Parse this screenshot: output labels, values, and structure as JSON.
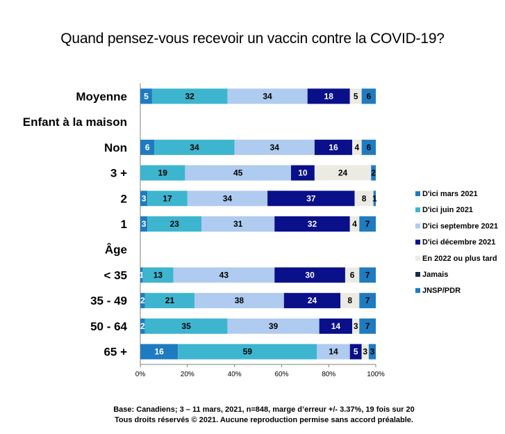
{
  "chart_data": {
    "type": "bar",
    "orientation": "horizontal",
    "stacked": true,
    "title": "Quand pensez-vous recevoir un vaccin contre la COVID-19?",
    "categories": [
      "Moyenne",
      "Enfant à la maison",
      "Non",
      "3 +",
      "2",
      "1",
      "Âge",
      "< 35",
      "35 - 49",
      "50 - 64",
      "65 +"
    ],
    "headers": [
      "Enfant à la maison",
      "Âge"
    ],
    "series": [
      {
        "name": "D'ici mars 2021",
        "color": "#1F7BC0",
        "text_color": "#ffffff",
        "values": [
          5,
          null,
          6,
          0,
          3,
          3,
          null,
          1,
          2,
          2,
          16
        ]
      },
      {
        "name": "D'ici juin 2021",
        "color": "#3DB5CF",
        "text_color": "#000000",
        "values": [
          32,
          null,
          34,
          19,
          17,
          23,
          null,
          13,
          21,
          35,
          59
        ]
      },
      {
        "name": "D'ici septembre 2021",
        "color": "#AFCBEF",
        "text_color": "#000000",
        "values": [
          34,
          null,
          34,
          45,
          34,
          31,
          null,
          43,
          38,
          39,
          14
        ]
      },
      {
        "name": "D'ici décembre 2021",
        "color": "#0A0F8A",
        "text_color": "#ffffff",
        "values": [
          18,
          null,
          16,
          10,
          37,
          32,
          null,
          30,
          24,
          14,
          5
        ]
      },
      {
        "name": "En 2022 ou plus tard",
        "color": "#ECEBE3",
        "text_color": "#000000",
        "values": [
          5,
          null,
          4,
          24,
          8,
          4,
          null,
          6,
          8,
          3,
          3
        ]
      },
      {
        "name": "Jamais",
        "color": "#1B2A4A",
        "text_color": "#ffffff",
        "values": [
          0,
          null,
          0,
          0,
          0,
          0,
          null,
          0,
          0,
          0,
          0
        ]
      },
      {
        "name": "JNSP/PDR",
        "color": "#1F7BC0",
        "text_color": "#000000",
        "values": [
          6,
          null,
          6,
          2,
          1,
          7,
          null,
          7,
          7,
          7,
          3
        ]
      }
    ],
    "xlim": [
      0,
      100
    ],
    "xticks": [
      "0%",
      "20%",
      "40%",
      "60%",
      "80%",
      "100%"
    ],
    "legend_position": "right"
  },
  "footnote": {
    "line1": "Base: Canadiens; 3 – 11 mars, 2021, n=848, marge d’erreur +/- 3.37%, 19 fois sur 20",
    "line2": "Tous droits réservés © 2021. Aucune reproduction permise sans accord préalable."
  }
}
